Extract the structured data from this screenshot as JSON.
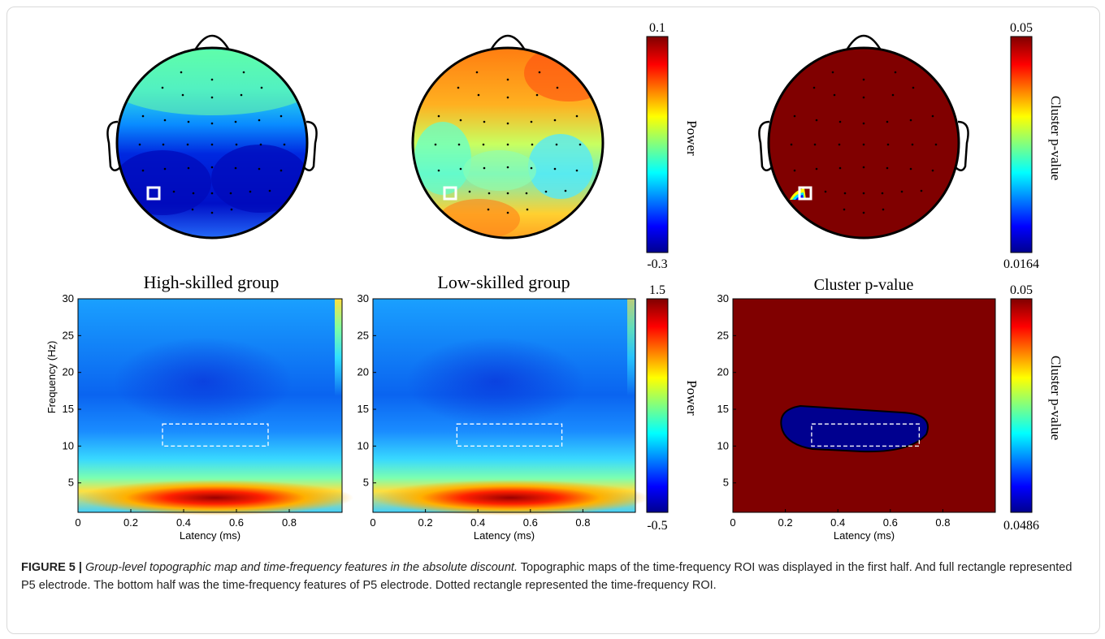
{
  "figure": {
    "label": "FIGURE 5 |",
    "caption_title": "Group-level topographic map and time-frequency features in the absolute discount.",
    "caption_text": "Topographic maps of the time-frequency ROI was displayed in the first half. And full rectangle represented P5 electrode. The bottom half was the time-frequency features of P5 electrode. Dotted rectangle represented the time-frequency ROI."
  },
  "colors": {
    "jet_stops": [
      "#00008f",
      "#0000ff",
      "#0080ff",
      "#00ffff",
      "#80ff80",
      "#ffff00",
      "#ff8000",
      "#ff0000",
      "#800000"
    ],
    "cluster_fill": "#800000",
    "cluster_blob": "#00008f"
  },
  "topomaps": {
    "power_colorbar": {
      "max_label": "0.1",
      "min_label": "-0.3",
      "title": "Power"
    },
    "pvalue_colorbar": {
      "max_label": "0.05",
      "min_label": "0.0164",
      "title": "Cluster p-value"
    }
  },
  "tf_panels": {
    "high": {
      "title": "High-skilled group"
    },
    "low": {
      "title": "Low-skilled group"
    },
    "cluster": {
      "title": "Cluster p-value"
    },
    "power_colorbar": {
      "max_label": "1.5",
      "min_label": "-0.5",
      "title": "Power"
    },
    "pvalue_colorbar": {
      "max_label": "0.05",
      "min_label": "0.0486",
      "title": "Cluster p-value"
    }
  },
  "chart_data": [
    {
      "type": "heatmap",
      "title": "High-skilled group",
      "xlabel": "Latency (ms)",
      "ylabel": "Frequency (Hz)",
      "xlim": [
        0,
        1
      ],
      "ylim": [
        1,
        30
      ],
      "xticks": [
        "0",
        "0.2",
        "0.4",
        "0.6",
        "0.8"
      ],
      "yticks": [
        "30",
        "25",
        "20",
        "15",
        "10",
        "5"
      ],
      "roi": {
        "x": [
          0.32,
          0.72
        ],
        "y": [
          10,
          13
        ]
      }
    },
    {
      "type": "heatmap",
      "title": "Low-skilled group",
      "xlabel": "Latency (ms)",
      "ylabel": "",
      "xlim": [
        0,
        1
      ],
      "ylim": [
        1,
        30
      ],
      "xticks": [
        "0",
        "0.2",
        "0.4",
        "0.6",
        "0.8"
      ],
      "yticks": [
        "30",
        "25",
        "20",
        "15",
        "10",
        "5"
      ],
      "roi": {
        "x": [
          0.32,
          0.72
        ],
        "y": [
          10,
          13
        ]
      }
    },
    {
      "type": "heatmap",
      "title": "Cluster p-value",
      "xlabel": "Latency (ms)",
      "ylabel": "",
      "xlim": [
        0,
        1
      ],
      "ylim": [
        1,
        30
      ],
      "xticks": [
        "0",
        "0.2",
        "0.4",
        "0.6",
        "0.8"
      ],
      "yticks": [
        "30",
        "25",
        "20",
        "15",
        "10",
        "5"
      ],
      "roi": {
        "x": [
          0.3,
          0.71
        ],
        "y": [
          10,
          13
        ]
      }
    }
  ]
}
